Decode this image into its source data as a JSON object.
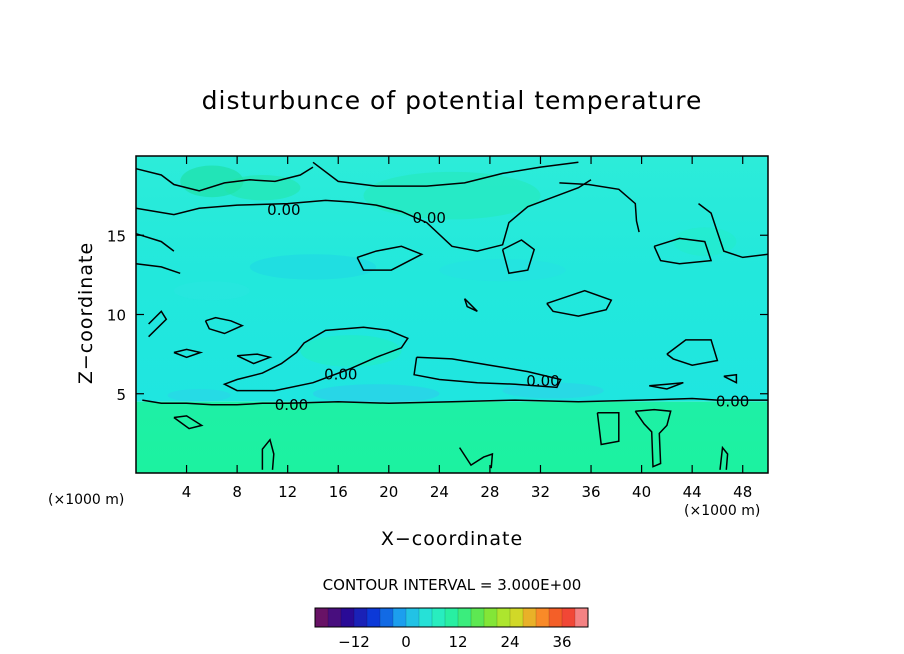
{
  "chart_data": {
    "type": "heatmap",
    "title": "disturbunce of potential temperature",
    "xlabel": "X−coordinate",
    "ylabel": "Z−coordinate",
    "x_unit_left": "(×1000 m)",
    "x_unit_right": "(×1000 m)",
    "xlim": [
      0,
      50
    ],
    "ylim": [
      0,
      20
    ],
    "x_ticks": [
      4,
      8,
      12,
      16,
      20,
      24,
      28,
      32,
      36,
      40,
      44,
      48
    ],
    "y_ticks": [
      5,
      10,
      15
    ],
    "contour_labels": [
      {
        "text": "0.00",
        "x": 11.7,
        "y": 16.6
      },
      {
        "text": "0.00",
        "x": 23.2,
        "y": 16.1
      },
      {
        "text": "0.00",
        "x": 16.2,
        "y": 6.2
      },
      {
        "text": "0.00",
        "x": 32.2,
        "y": 5.8
      },
      {
        "text": "0.00",
        "x": 12.3,
        "y": 4.3
      },
      {
        "text": "0.00",
        "x": 47.2,
        "y": 4.5
      }
    ],
    "contour_interval_text": "CONTOUR INTERVAL = 3.000E+00",
    "colorbar": {
      "min": -21,
      "max": 42,
      "step": 3,
      "tick_values": [
        -12,
        0,
        12,
        24,
        36
      ],
      "tick_labels": [
        "−12",
        "0",
        "12",
        "24",
        "36"
      ]
    },
    "field_regions": [
      {
        "name": "upper-layer",
        "z_range": [
          4.5,
          20
        ],
        "approx_value": 0,
        "color": "#27ecd8"
      },
      {
        "name": "lower-layer",
        "z_range": [
          0,
          4.5
        ],
        "approx_value": 3,
        "color": "#1df0a3"
      }
    ]
  }
}
